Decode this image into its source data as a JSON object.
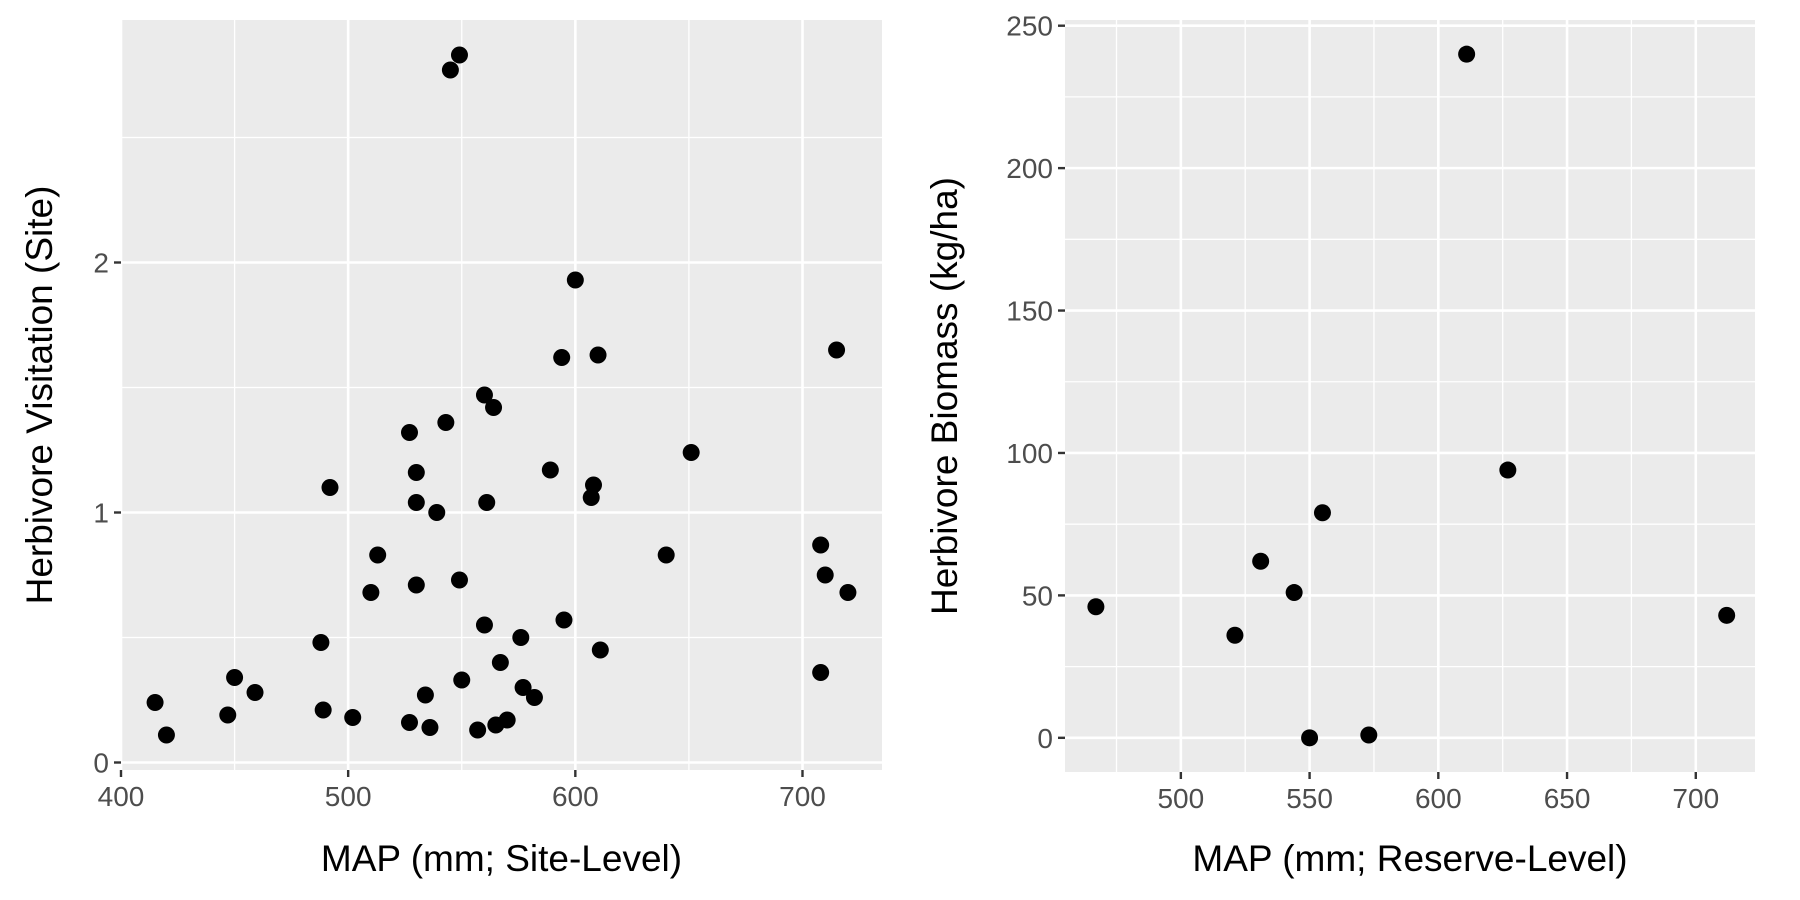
{
  "chart_data": [
    {
      "type": "scatter",
      "xlabel": "MAP (mm; Site-Level)",
      "ylabel": "Herbivore Visitation (Site)",
      "xlim": [
        400,
        735
      ],
      "ylim": [
        -0.03,
        2.97
      ],
      "xticks": [
        400,
        500,
        600,
        700
      ],
      "xminor": [
        450,
        550,
        650
      ],
      "yticks": [
        0,
        1,
        2
      ],
      "yminor": [
        0.5,
        1.5,
        2.5
      ],
      "tick_labels_x": [
        "400",
        "500",
        "600",
        "700"
      ],
      "tick_labels_y": [
        "0",
        "1",
        "2"
      ],
      "grid": true,
      "point_color": "#000000",
      "points": [
        {
          "x": 549,
          "y": 2.83
        },
        {
          "x": 545,
          "y": 2.77
        },
        {
          "x": 600,
          "y": 1.93
        },
        {
          "x": 715,
          "y": 1.65
        },
        {
          "x": 610,
          "y": 1.63
        },
        {
          "x": 594,
          "y": 1.62
        },
        {
          "x": 560,
          "y": 1.47
        },
        {
          "x": 564,
          "y": 1.42
        },
        {
          "x": 543,
          "y": 1.36
        },
        {
          "x": 527,
          "y": 1.32
        },
        {
          "x": 651,
          "y": 1.24
        },
        {
          "x": 589,
          "y": 1.17
        },
        {
          "x": 530,
          "y": 1.16
        },
        {
          "x": 608,
          "y": 1.11
        },
        {
          "x": 492,
          "y": 1.1
        },
        {
          "x": 607,
          "y": 1.06
        },
        {
          "x": 530,
          "y": 1.04
        },
        {
          "x": 561,
          "y": 1.04
        },
        {
          "x": 539,
          "y": 1.0
        },
        {
          "x": 708,
          "y": 0.87
        },
        {
          "x": 513,
          "y": 0.83
        },
        {
          "x": 640,
          "y": 0.83
        },
        {
          "x": 710,
          "y": 0.75
        },
        {
          "x": 549,
          "y": 0.73
        },
        {
          "x": 530,
          "y": 0.71
        },
        {
          "x": 510,
          "y": 0.68
        },
        {
          "x": 720,
          "y": 0.68
        },
        {
          "x": 595,
          "y": 0.57
        },
        {
          "x": 560,
          "y": 0.55
        },
        {
          "x": 576,
          "y": 0.5
        },
        {
          "x": 488,
          "y": 0.48
        },
        {
          "x": 611,
          "y": 0.45
        },
        {
          "x": 567,
          "y": 0.4
        },
        {
          "x": 708,
          "y": 0.36
        },
        {
          "x": 450,
          "y": 0.34
        },
        {
          "x": 550,
          "y": 0.33
        },
        {
          "x": 577,
          "y": 0.3
        },
        {
          "x": 459,
          "y": 0.28
        },
        {
          "x": 534,
          "y": 0.27
        },
        {
          "x": 582,
          "y": 0.26
        },
        {
          "x": 415,
          "y": 0.24
        },
        {
          "x": 489,
          "y": 0.21
        },
        {
          "x": 447,
          "y": 0.19
        },
        {
          "x": 502,
          "y": 0.18
        },
        {
          "x": 570,
          "y": 0.17
        },
        {
          "x": 527,
          "y": 0.16
        },
        {
          "x": 565,
          "y": 0.15
        },
        {
          "x": 536,
          "y": 0.14
        },
        {
          "x": 557,
          "y": 0.13
        },
        {
          "x": 420,
          "y": 0.11
        }
      ]
    },
    {
      "type": "scatter",
      "xlabel": "MAP (mm; Reserve-Level)",
      "ylabel": "Herbivore Biomass (kg/ha)",
      "xlim": [
        455,
        723
      ],
      "ylim": [
        -12,
        252
      ],
      "xticks": [
        500,
        550,
        600,
        650,
        700
      ],
      "xminor": [
        475,
        525,
        575,
        625,
        675
      ],
      "yticks": [
        0,
        50,
        100,
        150,
        200,
        250
      ],
      "yminor": [
        25,
        75,
        125,
        175,
        225
      ],
      "tick_labels_x": [
        "500",
        "550",
        "600",
        "650",
        "700"
      ],
      "tick_labels_y": [
        "0",
        "50",
        "100",
        "150",
        "200",
        "250"
      ],
      "grid": true,
      "point_color": "#000000",
      "points": [
        {
          "x": 611,
          "y": 240
        },
        {
          "x": 627,
          "y": 94
        },
        {
          "x": 555,
          "y": 79
        },
        {
          "x": 531,
          "y": 62
        },
        {
          "x": 544,
          "y": 51
        },
        {
          "x": 467,
          "y": 46
        },
        {
          "x": 712,
          "y": 43
        },
        {
          "x": 521,
          "y": 36
        },
        {
          "x": 573,
          "y": 1
        },
        {
          "x": 550,
          "y": 0
        }
      ]
    }
  ]
}
